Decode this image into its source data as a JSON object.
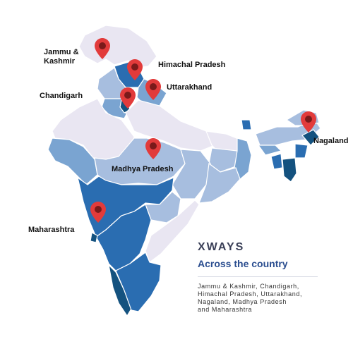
{
  "map": {
    "colors": {
      "lightest": "#e9e6f2",
      "light": "#a7bedf",
      "medium": "#7aa4d1",
      "dark": "#2a6db1",
      "darkest": "#14527f",
      "pin": "#e23b3b",
      "pin_center": "#7a1a1a"
    },
    "labels": {
      "jammu_kashmir": "Jammu &\nKashmir",
      "himachal": "Himachal Pradesh",
      "chandigarh": "Chandigarh",
      "uttarakhand": "Uttarakhand",
      "nagaland": "Nagaland",
      "madhya_pradesh": "Madhya Pradesh",
      "maharashtra": "Maharashtra"
    }
  },
  "info": {
    "title": "XWAYS",
    "tagline": "Across the country",
    "description": "Jammu & Kashmir, Chandigarh,\nHimachal Pradesh, Uttarakhand,\nNagaland, Madhya Pradesh\nand Maharashtra"
  }
}
